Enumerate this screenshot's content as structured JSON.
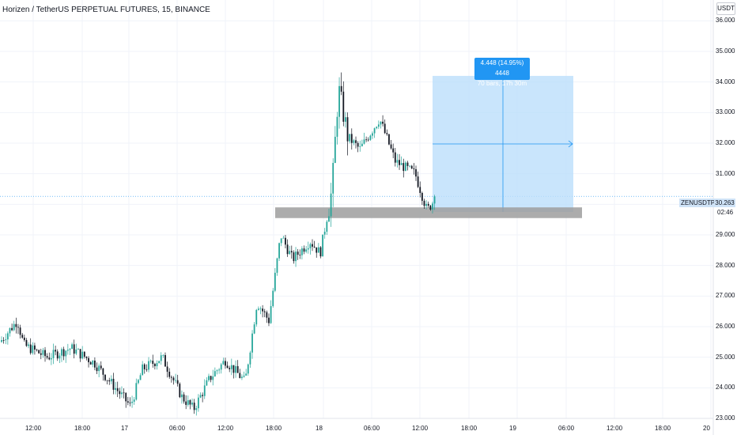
{
  "header": {
    "title": "Horizen / TetherUS PERPETUAL FUTURES, 15, BINANCE",
    "currency": "USDT"
  },
  "price_axis": {
    "ticks": [
      "36.000",
      "35.000",
      "34.000",
      "33.000",
      "32.000",
      "31.000",
      "30.000",
      "29.000",
      "28.000",
      "27.000",
      "26.000",
      "25.000",
      "24.000",
      "23.000"
    ],
    "symbol_tag": "ZENUSDTPERP",
    "last_price": "30.263",
    "countdown": "02:46"
  },
  "time_axis": {
    "ticks": [
      "12:00",
      "18:00",
      "17",
      "06:00",
      "12:00",
      "18:00",
      "18",
      "06:00",
      "12:00",
      "18:00",
      "19",
      "06:00",
      "12:00",
      "18:00",
      "20"
    ]
  },
  "measure_tool": {
    "line1": "4.448 (14.95%) 4448",
    "line2": "70 bars, 17h 30m"
  },
  "colors": {
    "up": "#26a69a",
    "down": "#131722",
    "zone": "#9e9e9e",
    "measure_fill": "#bbdefb",
    "measure_accent": "#2196f3"
  },
  "chart_data": {
    "type": "candlestick",
    "symbol": "ZENUSDTPERP",
    "interval": "15",
    "ylim": [
      23.0,
      36.5
    ],
    "support_zone": [
      29.55,
      29.9
    ],
    "measure": {
      "from": 29.75,
      "to": 34.2
    },
    "anchors": [
      {
        "x": 0,
        "y": 25.5
      },
      {
        "x": 22,
        "y": 26.2
      },
      {
        "x": 30,
        "y": 25.4
      },
      {
        "x": 60,
        "y": 25.0
      },
      {
        "x": 90,
        "y": 25.3
      },
      {
        "x": 120,
        "y": 24.8
      },
      {
        "x": 165,
        "y": 23.4
      },
      {
        "x": 180,
        "y": 24.6
      },
      {
        "x": 205,
        "y": 25.0
      },
      {
        "x": 230,
        "y": 23.7
      },
      {
        "x": 245,
        "y": 23.3
      },
      {
        "x": 265,
        "y": 24.3
      },
      {
        "x": 285,
        "y": 24.9
      },
      {
        "x": 310,
        "y": 24.2
      },
      {
        "x": 325,
        "y": 26.8
      },
      {
        "x": 340,
        "y": 26.2
      },
      {
        "x": 355,
        "y": 29.0
      },
      {
        "x": 370,
        "y": 28.2
      },
      {
        "x": 392,
        "y": 28.8
      },
      {
        "x": 405,
        "y": 28.4
      },
      {
        "x": 420,
        "y": 30.5
      },
      {
        "x": 428,
        "y": 33.8
      },
      {
        "x": 440,
        "y": 32.2
      },
      {
        "x": 455,
        "y": 31.8
      },
      {
        "x": 480,
        "y": 32.8
      },
      {
        "x": 500,
        "y": 31.4
      },
      {
        "x": 525,
        "y": 31.0
      },
      {
        "x": 540,
        "y": 29.8
      },
      {
        "x": 552,
        "y": 30.25
      }
    ]
  }
}
